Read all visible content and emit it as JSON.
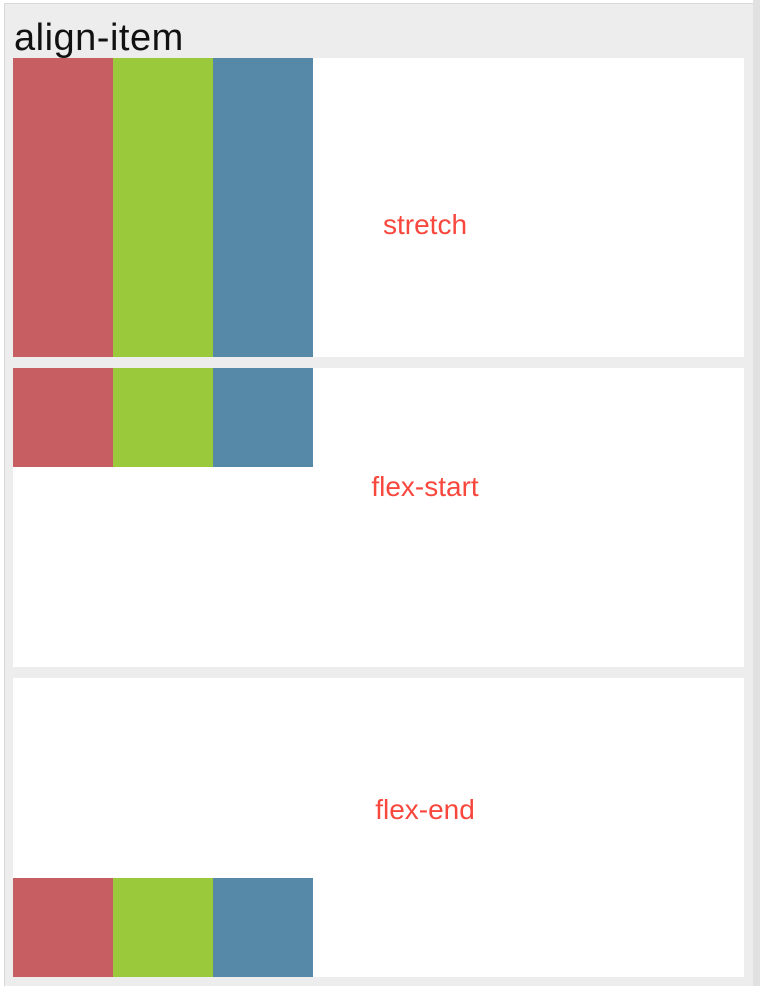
{
  "page": {
    "title": "align-item"
  },
  "sections": [
    {
      "id": "stretch",
      "label": "stretch"
    },
    {
      "id": "flex-start",
      "label": "flex-start"
    },
    {
      "id": "flex-end",
      "label": "flex-end"
    }
  ],
  "colors": {
    "page_background": "#ededed",
    "panel_background": "#ffffff",
    "item_red": "#c75f62",
    "item_green": "#9aca3c",
    "item_blue": "#5689a7",
    "label_text": "#f8473d",
    "title_text": "#111111"
  }
}
